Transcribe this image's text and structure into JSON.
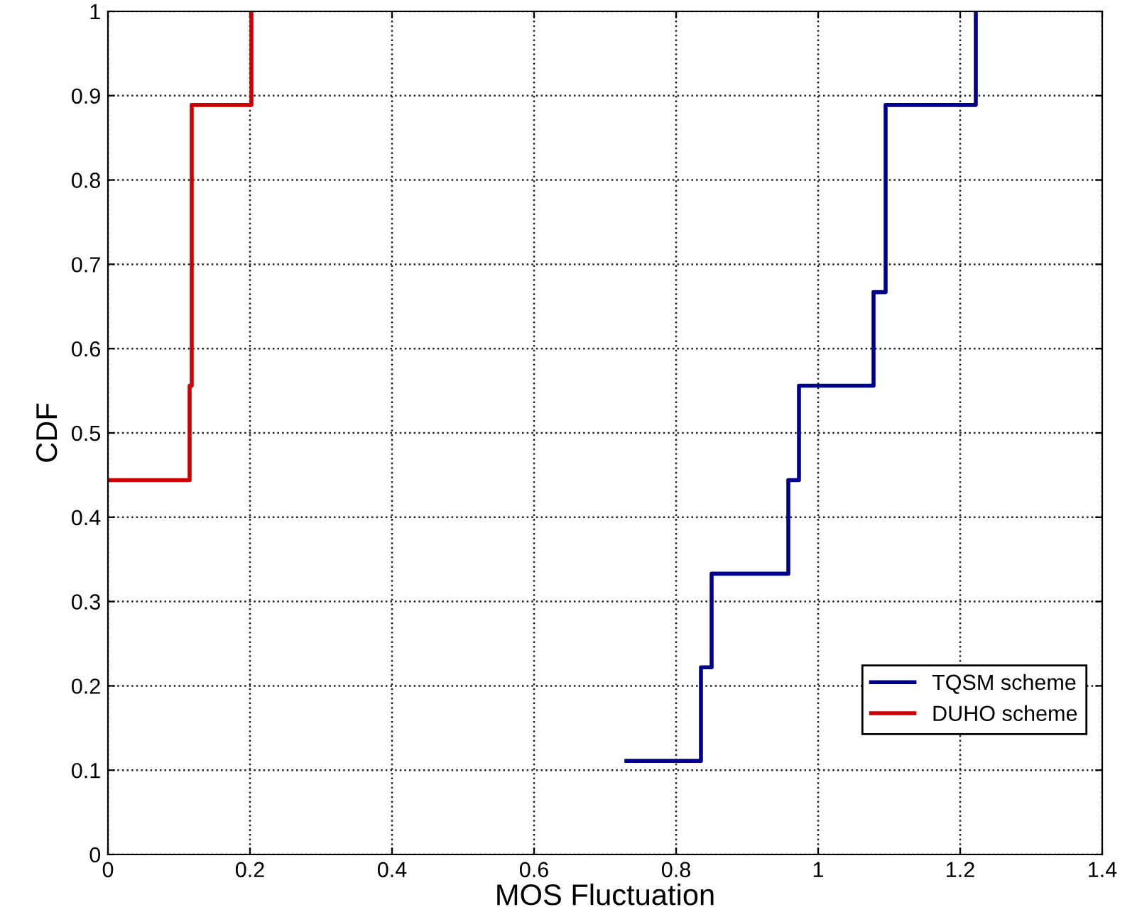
{
  "chart_data": {
    "type": "step",
    "xlabel": "MOS Fluctuation",
    "ylabel": "CDF",
    "series": [
      {
        "name": "TQSM scheme",
        "color": "#00008b",
        "x": [
          0.73,
          0.835,
          0.85,
          0.958,
          0.973,
          1.078,
          1.095,
          1.222
        ],
        "values": [
          0.111,
          0.222,
          0.333,
          0.444,
          0.556,
          0.667,
          0.889,
          1.0
        ]
      },
      {
        "name": "DUHO scheme",
        "color": "#cc0000",
        "x": [
          0,
          0.115,
          0.118,
          0.202
        ],
        "values": [
          0.444,
          0.556,
          0.889,
          1.0
        ]
      }
    ],
    "xlim": [
      0,
      1.4
    ],
    "xticks": [
      0,
      0.2,
      0.4,
      0.6,
      0.8,
      1,
      1.2,
      1.4
    ],
    "ylim": [
      0,
      1
    ],
    "yticks": [
      0,
      0.1,
      0.2,
      0.3,
      0.4,
      0.5,
      0.6,
      0.7,
      0.8,
      0.9,
      1
    ],
    "grid": true,
    "legend": "bottom right",
    "line_style": "solid"
  }
}
